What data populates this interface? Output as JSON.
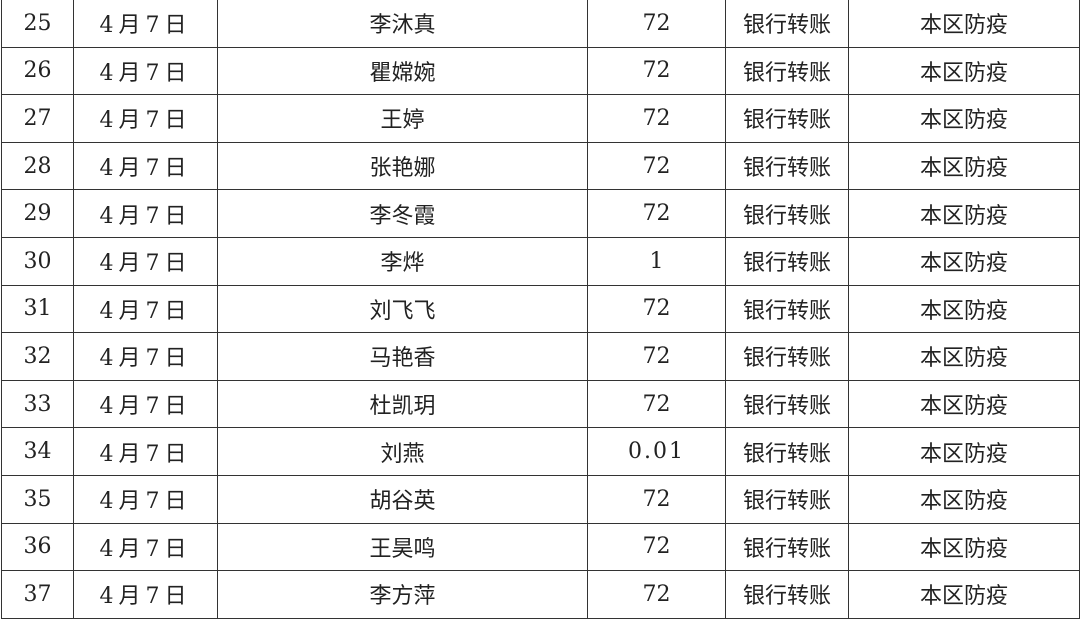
{
  "rows": [
    {
      "no": "25",
      "date": "4月7日",
      "name": "李沐真",
      "amount": "72",
      "method": "银行转账",
      "purpose": "本区防疫"
    },
    {
      "no": "26",
      "date": "4月7日",
      "name": "瞿嫦婉",
      "amount": "72",
      "method": "银行转账",
      "purpose": "本区防疫"
    },
    {
      "no": "27",
      "date": "4月7日",
      "name": "王婷",
      "amount": "72",
      "method": "银行转账",
      "purpose": "本区防疫"
    },
    {
      "no": "28",
      "date": "4月7日",
      "name": "张艳娜",
      "amount": "72",
      "method": "银行转账",
      "purpose": "本区防疫"
    },
    {
      "no": "29",
      "date": "4月7日",
      "name": "李冬霞",
      "amount": "72",
      "method": "银行转账",
      "purpose": "本区防疫"
    },
    {
      "no": "30",
      "date": "4月7日",
      "name": "李烨",
      "amount": "1",
      "method": "银行转账",
      "purpose": "本区防疫"
    },
    {
      "no": "31",
      "date": "4月7日",
      "name": "刘飞飞",
      "amount": "72",
      "method": "银行转账",
      "purpose": "本区防疫"
    },
    {
      "no": "32",
      "date": "4月7日",
      "name": "马艳香",
      "amount": "72",
      "method": "银行转账",
      "purpose": "本区防疫"
    },
    {
      "no": "33",
      "date": "4月7日",
      "name": "杜凯玥",
      "amount": "72",
      "method": "银行转账",
      "purpose": "本区防疫"
    },
    {
      "no": "34",
      "date": "4月7日",
      "name": "刘燕",
      "amount": "0.01",
      "method": "银行转账",
      "purpose": "本区防疫"
    },
    {
      "no": "35",
      "date": "4月7日",
      "name": "胡谷英",
      "amount": "72",
      "method": "银行转账",
      "purpose": "本区防疫"
    },
    {
      "no": "36",
      "date": "4月7日",
      "name": "王昊鸣",
      "amount": "72",
      "method": "银行转账",
      "purpose": "本区防疫"
    },
    {
      "no": "37",
      "date": "4月7日",
      "name": "李方萍",
      "amount": "72",
      "method": "银行转账",
      "purpose": "本区防疫"
    }
  ]
}
